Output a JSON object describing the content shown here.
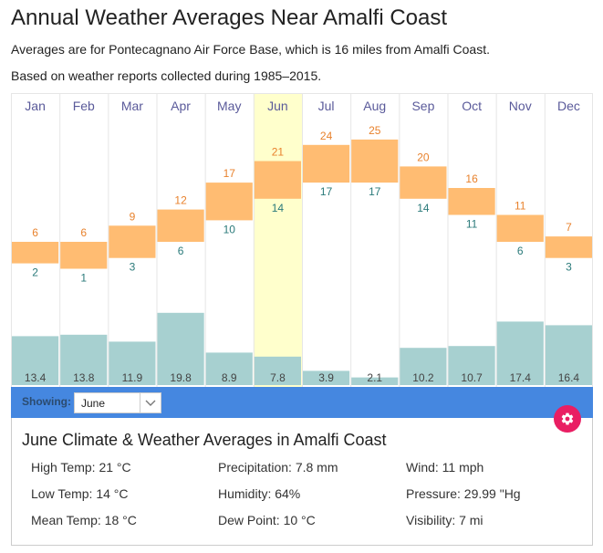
{
  "header": {
    "title": "Annual Weather Averages Near Amalfi Coast",
    "subtitle1": "Averages are for Pontecagnano Air Force Base, which is 16 miles from Amalfi Coast.",
    "subtitle2": "Based on weather reports collected during 1985–2015."
  },
  "colors": {
    "temp_bar": "#ffbc72",
    "precip_bar": "#a7d0d0",
    "high_label": "#e8822d",
    "low_label": "#2a7a7a",
    "month_label": "#5a5a9a",
    "selected_column": "#ffffcc",
    "toolbar": "#4587e0",
    "gear_button": "#e91e63"
  },
  "chart_data": {
    "type": "bar",
    "title": "Annual Weather Averages Near Amalfi Coast",
    "categories": [
      "Jan",
      "Feb",
      "Mar",
      "Apr",
      "May",
      "Jun",
      "Jul",
      "Aug",
      "Sep",
      "Oct",
      "Nov",
      "Dec"
    ],
    "series": [
      {
        "name": "High Temp (°C)",
        "values": [
          6,
          6,
          9,
          12,
          17,
          21,
          24,
          25,
          20,
          16,
          11,
          7
        ]
      },
      {
        "name": "Low Temp (°C)",
        "values": [
          2,
          1,
          3,
          6,
          10,
          14,
          17,
          17,
          14,
          11,
          6,
          3
        ]
      },
      {
        "name": "Precipitation (mm)",
        "values": [
          13.4,
          13.8,
          11.9,
          19.8,
          8.9,
          7.8,
          3.9,
          2.1,
          10.2,
          10.7,
          17.4,
          16.4
        ]
      }
    ],
    "selected_index": 5,
    "temp_range": [
      -5,
      32
    ],
    "precip_range": [
      0,
      40
    ],
    "xlabel": "",
    "ylabel": "",
    "grid": false
  },
  "toolbar": {
    "showing_label": "Showing:",
    "selected_month": "June"
  },
  "details": {
    "title": "June Climate & Weather Averages in Amalfi Coast",
    "stats": [
      [
        "High Temp: 21 °C",
        "Precipitation: 7.8 mm",
        "Wind: 11 mph"
      ],
      [
        "Low Temp: 14 °C",
        "Humidity: 64%",
        "Pressure: 29.99 \"Hg"
      ],
      [
        "Mean Temp: 18 °C",
        "Dew Point: 10 °C",
        "Visibility: 7 mi"
      ]
    ]
  },
  "icons": {
    "settings": "gear-icon",
    "dropdown": "chevron-down-icon"
  }
}
